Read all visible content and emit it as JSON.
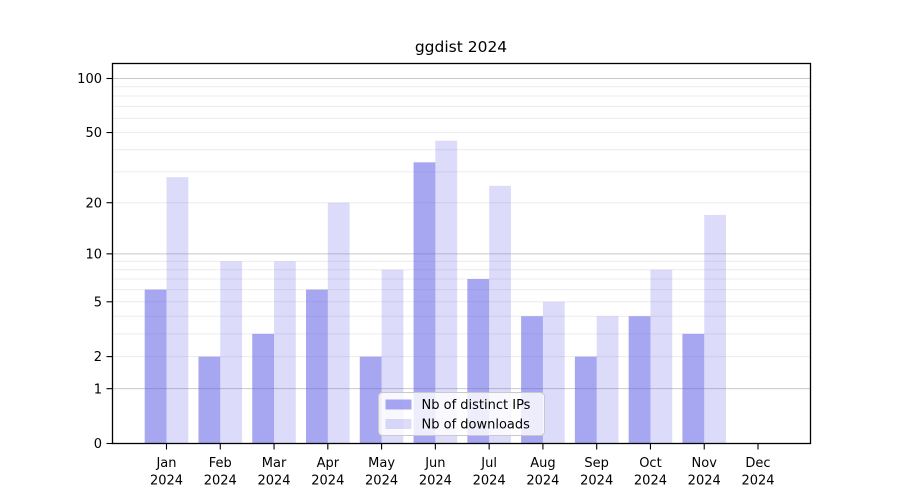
{
  "chart_data": {
    "type": "bar",
    "title": "ggdist 2024",
    "xlabel": "",
    "ylabel": "",
    "yscale": "log10(value+1)",
    "ylim": [
      0,
      100
    ],
    "grid": "on",
    "yticks": [
      100,
      50,
      20,
      10,
      5,
      2,
      1,
      0
    ],
    "minor_gridlines": [
      2,
      3,
      4,
      5,
      6,
      7,
      8,
      9,
      20,
      30,
      40,
      50,
      60,
      70,
      80,
      90
    ],
    "major_gridlines": [
      1,
      10,
      100
    ],
    "categories": [
      "Jan 2024",
      "Feb 2024",
      "Mar 2024",
      "Apr 2024",
      "May 2024",
      "Jun 2024",
      "Jul 2024",
      "Aug 2024",
      "Sep 2024",
      "Oct 2024",
      "Nov 2024",
      "Dec 2024"
    ],
    "series": [
      {
        "name": "Nb of distinct IPs",
        "color": "rgba(95,95,230,0.55)",
        "values": [
          6,
          2,
          3,
          6,
          2,
          34,
          7,
          4,
          2,
          4,
          3,
          0
        ]
      },
      {
        "name": "Nb of downloads",
        "color": "rgba(95,95,230,0.22)",
        "values": [
          28,
          9,
          9,
          20,
          8,
          45,
          25,
          5,
          4,
          8,
          17,
          0
        ]
      }
    ],
    "legend": {
      "position": "bottom-center"
    },
    "colors": {
      "bar_dark": "#a9a9f1",
      "bar_light": "#dcdcf9",
      "axis": "#000000",
      "minor_grid": "#ececec",
      "major_grid": "#c9c9c9",
      "legend_border": "#c9c9c9",
      "legend_bg": "rgba(255,255,255,0.8)"
    }
  }
}
